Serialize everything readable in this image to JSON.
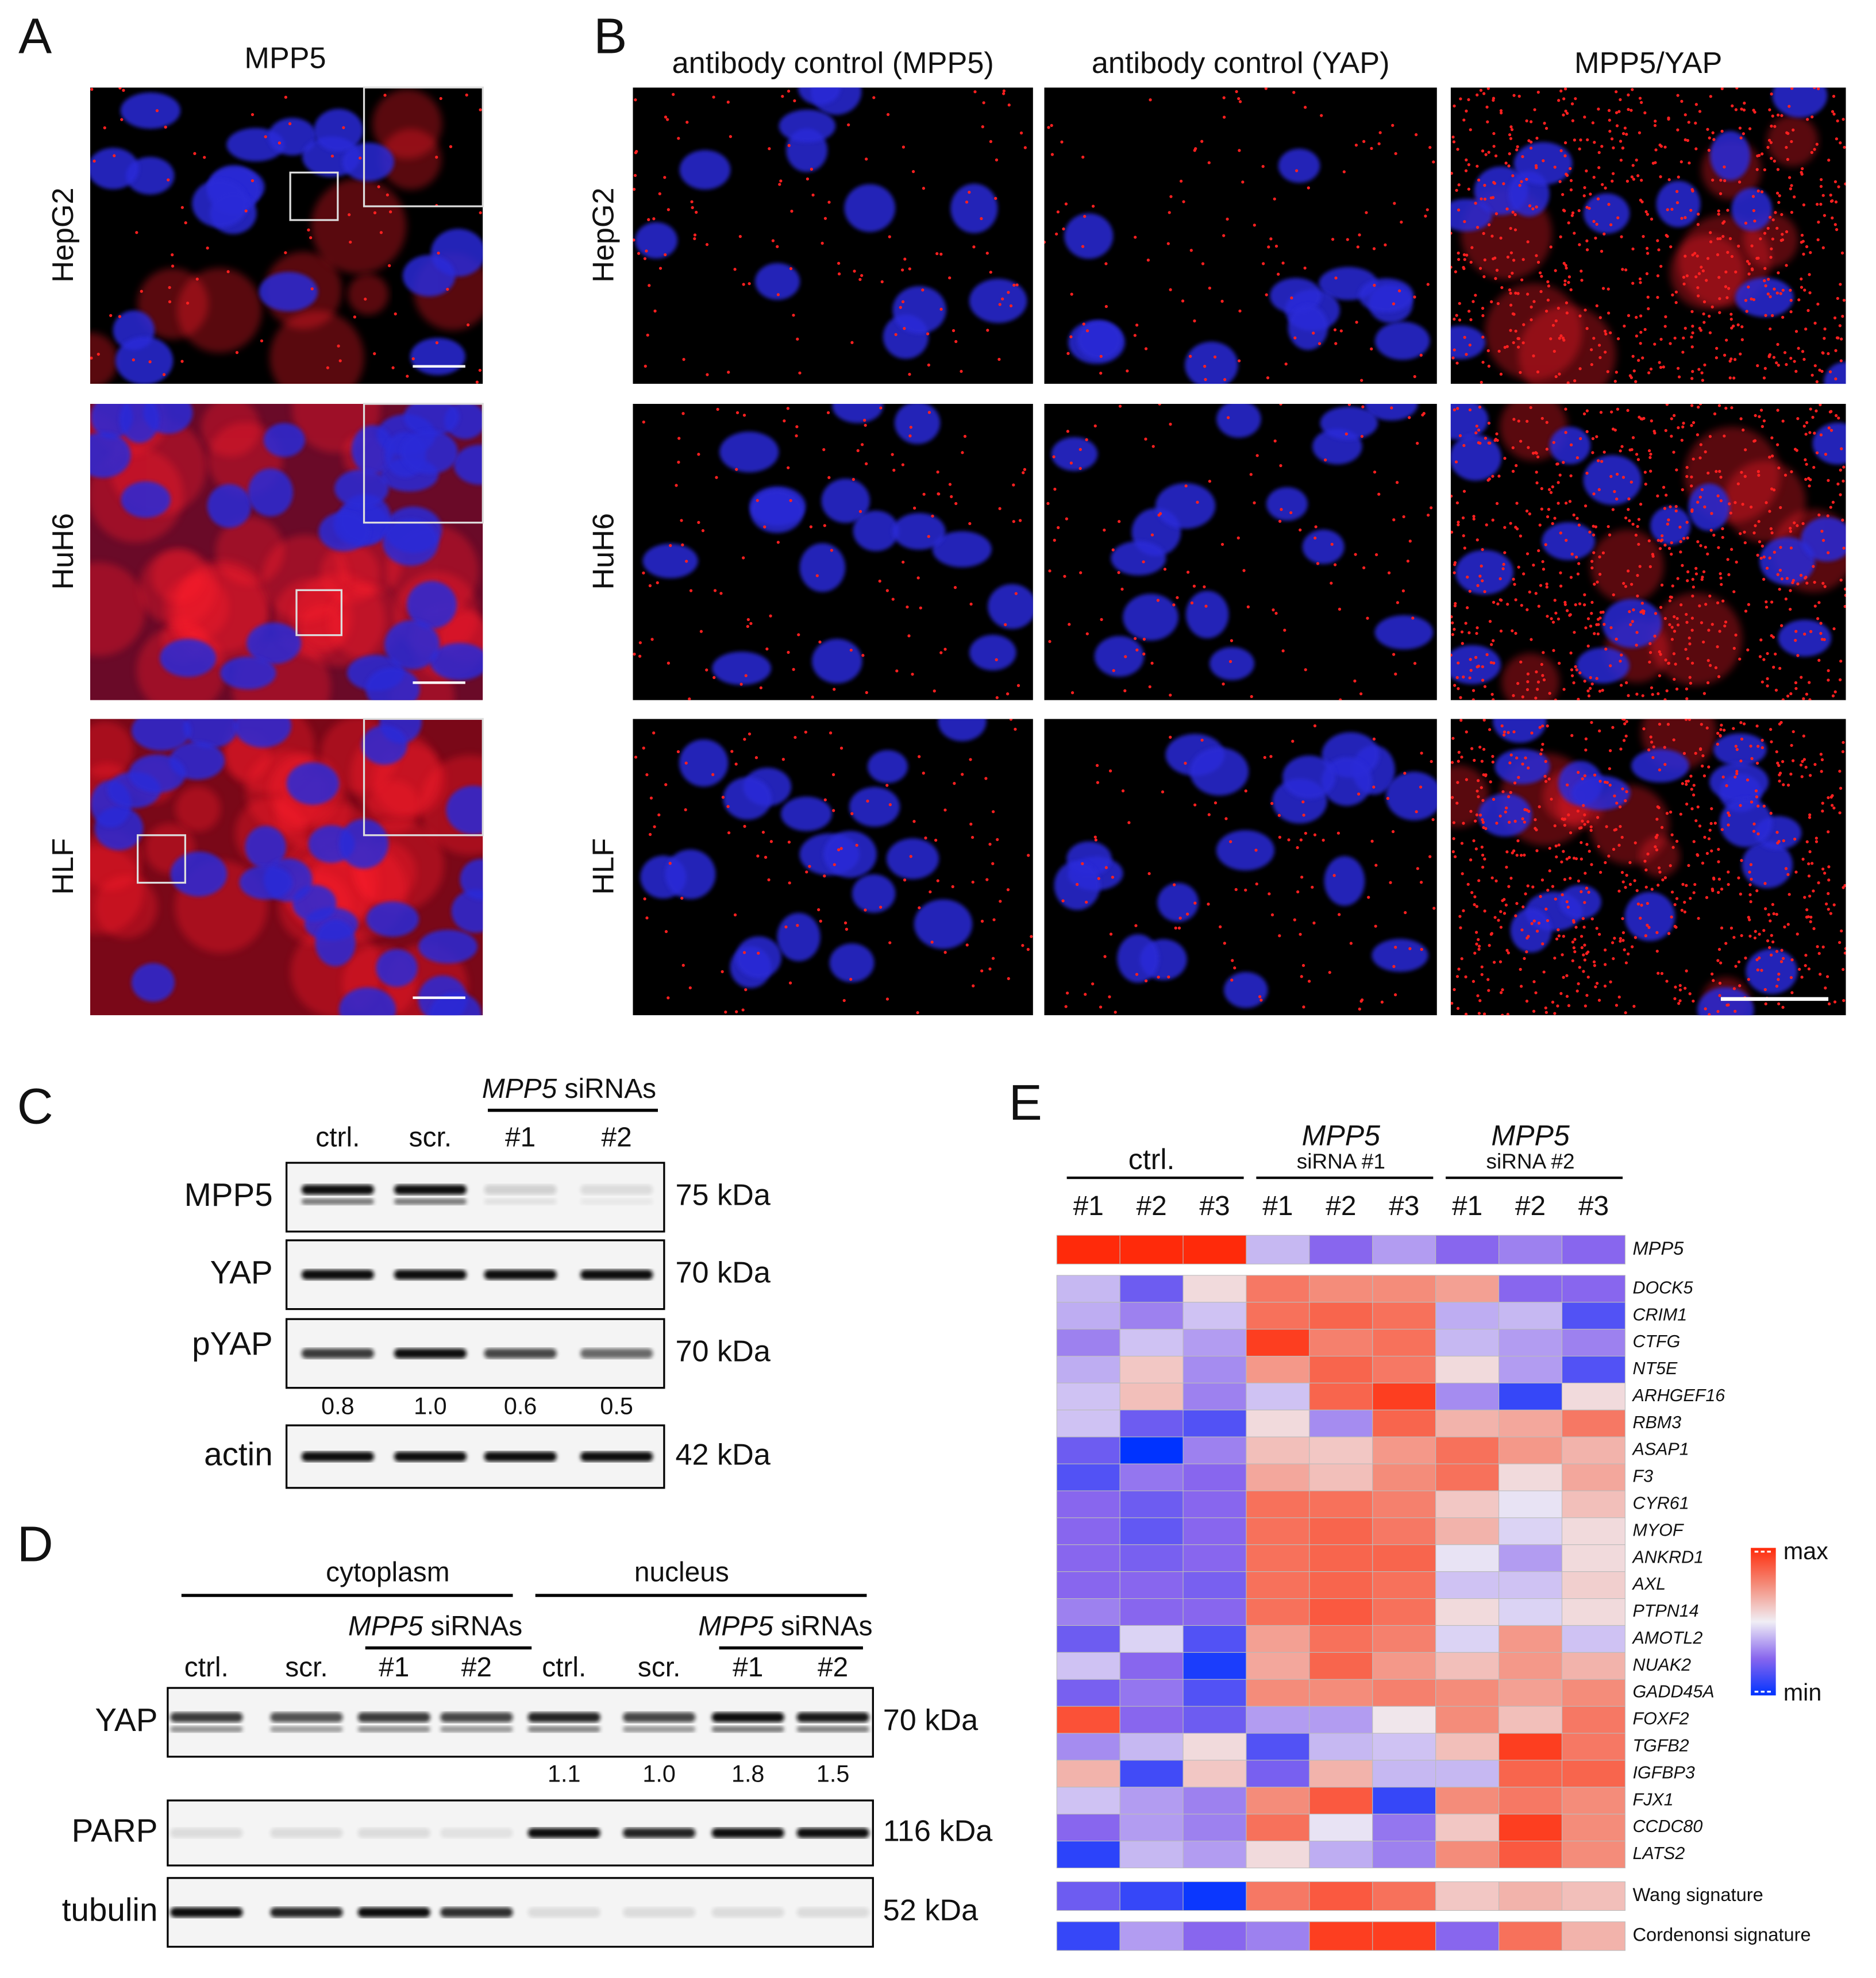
{
  "panels": {
    "A": {
      "label": "A",
      "title": "MPP5",
      "rows": [
        "HepG2",
        "HuH6",
        "HLF"
      ]
    },
    "B": {
      "label": "B",
      "columns": [
        "antibody control (MPP5)",
        "antibody control (YAP)",
        "MPP5/YAP"
      ],
      "rows": [
        "HepG2",
        "HuH6",
        "HLF"
      ]
    },
    "C": {
      "label": "C",
      "sirna_gene": "MPP5",
      "sirna_text": "siRNAs",
      "lanes": [
        "ctrl.",
        "scr.",
        "#1",
        "#2"
      ],
      "blots": [
        {
          "protein": "MPP5",
          "size": "75 kDa"
        },
        {
          "protein": "YAP",
          "size": "70 kDa"
        },
        {
          "protein": "pYAP",
          "size": "70 kDa"
        },
        {
          "protein": "actin",
          "size": "42 kDa"
        }
      ],
      "quantification": [
        "0.8",
        "1.0",
        "0.6",
        "0.5"
      ]
    },
    "D": {
      "label": "D",
      "sirna_gene": "MPP5",
      "sirna_text": "siRNAs",
      "fractions": [
        {
          "name": "cytoplasm",
          "lanes": [
            "ctrl.",
            "scr.",
            "#1",
            "#2"
          ]
        },
        {
          "name": "nucleus",
          "lanes": [
            "ctrl.",
            "scr.",
            "#1",
            "#2"
          ]
        }
      ],
      "blots": [
        {
          "protein": "YAP",
          "size": "70 kDa"
        },
        {
          "protein": "PARP",
          "size": "116 kDa"
        },
        {
          "protein": "tubulin",
          "size": "52 kDa"
        }
      ],
      "quantification": [
        "1.1",
        "1.0",
        "1.8",
        "1.5"
      ]
    },
    "E": {
      "label": "E",
      "groups": [
        {
          "name": "ctrl.",
          "samples": [
            "#1",
            "#2",
            "#3"
          ]
        },
        {
          "name": "MPP5",
          "sub": "siRNA #1",
          "samples": [
            "#1",
            "#2",
            "#3"
          ]
        },
        {
          "name": "MPP5",
          "sub": "siRNA #2",
          "samples": [
            "#1",
            "#2",
            "#3"
          ]
        }
      ],
      "legend": {
        "max": "max",
        "min": "min"
      },
      "target": {
        "name": "MPP5",
        "values": [
          1,
          1,
          1,
          0.4,
          0.25,
          0.35,
          0.25,
          0.3,
          0.25
        ]
      },
      "genes": [
        {
          "name": "DOCK5",
          "values": [
            0.4,
            0.2,
            0.55,
            0.8,
            0.75,
            0.75,
            0.7,
            0.25,
            0.25
          ]
        },
        {
          "name": "CRIM1",
          "values": [
            0.38,
            0.3,
            0.42,
            0.82,
            0.85,
            0.82,
            0.38,
            0.4,
            0.15
          ]
        },
        {
          "name": "CTFG",
          "values": [
            0.3,
            0.42,
            0.35,
            0.95,
            0.78,
            0.82,
            0.4,
            0.35,
            0.3
          ]
        },
        {
          "name": "NT5E",
          "values": [
            0.38,
            0.6,
            0.32,
            0.72,
            0.85,
            0.8,
            0.55,
            0.35,
            0.15
          ]
        },
        {
          "name": "ARHGEF16",
          "values": [
            0.42,
            0.62,
            0.3,
            0.42,
            0.85,
            0.95,
            0.32,
            0.1,
            0.55
          ]
        },
        {
          "name": "RBM3",
          "values": [
            0.42,
            0.2,
            0.15,
            0.55,
            0.32,
            0.85,
            0.65,
            0.68,
            0.8
          ]
        },
        {
          "name": "ASAP1",
          "values": [
            0.2,
            0,
            0.3,
            0.62,
            0.6,
            0.72,
            0.82,
            0.72,
            0.65
          ]
        },
        {
          "name": "F3",
          "values": [
            0.15,
            0.28,
            0.25,
            0.68,
            0.62,
            0.75,
            0.82,
            0.55,
            0.68
          ]
        },
        {
          "name": "CYR61",
          "values": [
            0.25,
            0.2,
            0.25,
            0.82,
            0.82,
            0.78,
            0.6,
            0.48,
            0.62
          ]
        },
        {
          "name": "MYOF",
          "values": [
            0.25,
            0.18,
            0.25,
            0.82,
            0.85,
            0.8,
            0.65,
            0.45,
            0.55
          ]
        },
        {
          "name": "ANKRD1",
          "values": [
            0.25,
            0.22,
            0.25,
            0.82,
            0.85,
            0.85,
            0.48,
            0.35,
            0.55
          ]
        },
        {
          "name": "AXL",
          "values": [
            0.25,
            0.25,
            0.22,
            0.82,
            0.85,
            0.82,
            0.42,
            0.42,
            0.58
          ]
        },
        {
          "name": "PTPN14",
          "values": [
            0.3,
            0.25,
            0.25,
            0.82,
            0.88,
            0.82,
            0.55,
            0.45,
            0.55
          ]
        },
        {
          "name": "AMOTL2",
          "values": [
            0.2,
            0.45,
            0.15,
            0.7,
            0.82,
            0.78,
            0.45,
            0.72,
            0.42
          ]
        },
        {
          "name": "NUAK2",
          "values": [
            0.42,
            0.25,
            0.05,
            0.68,
            0.85,
            0.72,
            0.62,
            0.72,
            0.65
          ]
        },
        {
          "name": "GADD45A",
          "values": [
            0.22,
            0.28,
            0.15,
            0.75,
            0.75,
            0.78,
            0.75,
            0.7,
            0.75
          ]
        },
        {
          "name": "FOXF2",
          "values": [
            0.9,
            0.25,
            0.2,
            0.35,
            0.35,
            0.52,
            0.75,
            0.62,
            0.8
          ]
        },
        {
          "name": "TGFB2",
          "values": [
            0.32,
            0.4,
            0.55,
            0.15,
            0.4,
            0.42,
            0.62,
            0.95,
            0.8
          ]
        },
        {
          "name": "IGFBP3",
          "values": [
            0.65,
            0.12,
            0.6,
            0.22,
            0.65,
            0.4,
            0.4,
            0.85,
            0.85
          ]
        },
        {
          "name": "FJX1",
          "values": [
            0.42,
            0.35,
            0.3,
            0.75,
            0.88,
            0.1,
            0.75,
            0.8,
            0.75
          ]
        },
        {
          "name": "CCDC80",
          "values": [
            0.25,
            0.35,
            0.3,
            0.82,
            0.48,
            0.28,
            0.6,
            0.95,
            0.75
          ]
        },
        {
          "name": "LATS2",
          "values": [
            0.08,
            0.4,
            0.35,
            0.55,
            0.38,
            0.3,
            0.75,
            0.88,
            0.75
          ]
        }
      ],
      "signatures": [
        {
          "name": "Wang signature",
          "values": [
            0.2,
            0.1,
            0.02,
            0.8,
            0.88,
            0.82,
            0.6,
            0.65,
            0.62
          ]
        },
        {
          "name": "Cordenonsi signature",
          "values": [
            0.1,
            0.35,
            0.25,
            0.3,
            0.95,
            0.95,
            0.25,
            0.82,
            0.65
          ]
        }
      ]
    }
  }
}
